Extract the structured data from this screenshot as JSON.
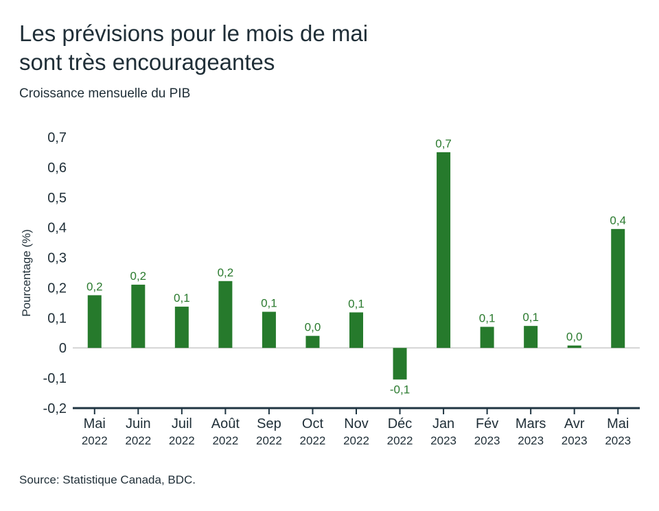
{
  "header": {
    "title_line1": "Les prévisions pour le mois de mai",
    "title_line2": "sont très encourageantes",
    "subtitle": "Croissance mensuelle du PIB"
  },
  "footer": {
    "source": "Source: Statistique Canada, BDC."
  },
  "colors": {
    "bar": "#267a2c",
    "data_label": "#2a7a2e",
    "axis": "#1f3542",
    "zero_line": "#c8c8c8"
  },
  "chart_data": {
    "type": "bar",
    "title": "Les prévisions pour le mois de mai sont très encourageantes",
    "subtitle": "Croissance mensuelle du PIB",
    "ylabel": "Pourcentage (%)",
    "xlabel": "",
    "ylim": [
      -0.2,
      0.7
    ],
    "yticks": [
      {
        "value": 0.7,
        "label": "0,7"
      },
      {
        "value": 0.6,
        "label": "0,6"
      },
      {
        "value": 0.5,
        "label": "0,5"
      },
      {
        "value": 0.4,
        "label": "0,4"
      },
      {
        "value": 0.3,
        "label": "0,3"
      },
      {
        "value": 0.2,
        "label": "0,2"
      },
      {
        "value": 0.1,
        "label": "0,1"
      },
      {
        "value": 0,
        "label": "0"
      },
      {
        "value": -0.1,
        "label": "-0,1"
      },
      {
        "value": -0.2,
        "label": "-0,2"
      }
    ],
    "categories": [
      {
        "month": "Mai",
        "year": "2022"
      },
      {
        "month": "Juin",
        "year": "2022"
      },
      {
        "month": "Juil",
        "year": "2022"
      },
      {
        "month": "Août",
        "year": "2022"
      },
      {
        "month": "Sep",
        "year": "2022"
      },
      {
        "month": "Oct",
        "year": "2022"
      },
      {
        "month": "Nov",
        "year": "2022"
      },
      {
        "month": "Déc",
        "year": "2022"
      },
      {
        "month": "Jan",
        "year": "2023"
      },
      {
        "month": "Fév",
        "year": "2023"
      },
      {
        "month": "Mars",
        "year": "2023"
      },
      {
        "month": "Avr",
        "year": "2023"
      },
      {
        "month": "Mai",
        "year": "2023"
      }
    ],
    "values": [
      0.175,
      0.21,
      0.137,
      0.222,
      0.12,
      0.04,
      0.118,
      -0.105,
      0.65,
      0.07,
      0.073,
      0.008,
      0.395
    ],
    "data_labels": [
      "0,2",
      "0,2",
      "0,1",
      "0,2",
      "0,1",
      "0,0",
      "0,1",
      "-0,1",
      "0,7",
      "0,1",
      "0,1",
      "0,0",
      "0,4"
    ],
    "grid": false,
    "legend": "none"
  }
}
